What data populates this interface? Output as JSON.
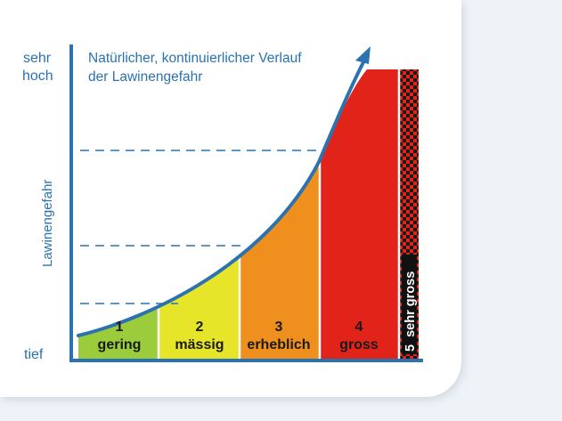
{
  "y_axis": {
    "top_label_line1": "sehr",
    "top_label_line2": "hoch",
    "bottom_label": "tief",
    "title": "Lawinengefahr"
  },
  "curve_caption": {
    "line1": "Natürlicher, kontinuierlicher Verlauf",
    "line2": "der Lawinengefahr"
  },
  "levels": [
    {
      "number": "1",
      "name": "gering",
      "color": "#9acc3c"
    },
    {
      "number": "2",
      "name": "mässig",
      "color": "#e6e52a"
    },
    {
      "number": "3",
      "name": "erheblich",
      "color": "#ef8f1e"
    },
    {
      "number": "4",
      "name": "gross",
      "color": "#e2231a"
    },
    {
      "number": "5",
      "name": "sehr gross",
      "color": "#111111"
    }
  ],
  "colors": {
    "axis": "#2a72b0",
    "checker_red": "#e2231a",
    "checker_dark": "#1a1a1a"
  }
}
